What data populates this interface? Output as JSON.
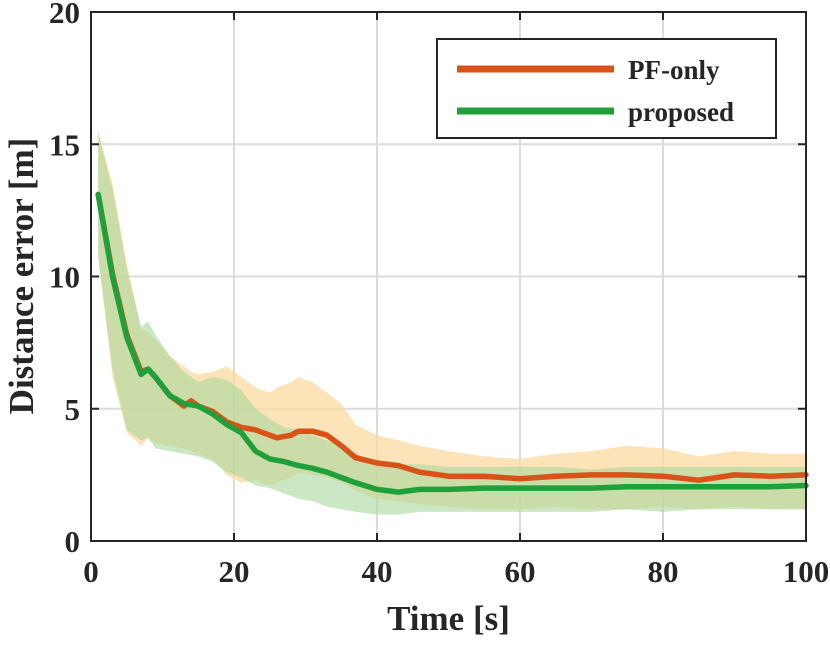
{
  "chart_data": {
    "type": "line",
    "title": "",
    "xlabel": "Time [s]",
    "ylabel": "Distance error [m]",
    "xlim": [
      0,
      100
    ],
    "ylim": [
      0,
      20
    ],
    "xticks": [
      0,
      20,
      40,
      60,
      80,
      100
    ],
    "yticks": [
      0,
      5,
      10,
      15,
      20
    ],
    "xtick_labels": [
      "0",
      "20",
      "40",
      "60",
      "80",
      "100"
    ],
    "ytick_labels": [
      "0",
      "5",
      "10",
      "15",
      "20"
    ],
    "grid": true,
    "legend_position": "top-right",
    "series": [
      {
        "name": "PF-only",
        "color": "#d95319",
        "band_color": "#fcd9a0",
        "x": [
          1,
          3,
          5,
          7,
          8,
          9,
          11,
          13,
          14,
          15,
          17,
          19,
          21,
          23,
          25,
          26,
          28,
          29,
          31,
          33,
          35,
          37,
          40,
          43,
          46,
          50,
          55,
          60,
          65,
          70,
          75,
          80,
          85,
          90,
          95,
          100
        ],
        "values": [
          13.1,
          10.1,
          7.8,
          6.4,
          6.5,
          6.2,
          5.5,
          5.1,
          5.3,
          5.1,
          4.9,
          4.5,
          4.3,
          4.2,
          4.0,
          3.9,
          4.0,
          4.15,
          4.15,
          4.0,
          3.6,
          3.15,
          2.95,
          2.85,
          2.6,
          2.45,
          2.45,
          2.35,
          2.45,
          2.5,
          2.5,
          2.45,
          2.3,
          2.5,
          2.45,
          2.5
        ],
        "upper": [
          15.5,
          13.5,
          10.5,
          8.0,
          7.9,
          7.6,
          7.0,
          6.6,
          6.4,
          6.3,
          6.4,
          6.6,
          6.2,
          5.8,
          5.6,
          5.8,
          6.0,
          6.2,
          6.0,
          5.6,
          5.2,
          4.4,
          4.0,
          3.8,
          3.6,
          3.4,
          3.2,
          3.1,
          3.3,
          3.4,
          3.6,
          3.5,
          3.2,
          3.4,
          3.3,
          3.3
        ],
        "lower": [
          10.8,
          6.2,
          4.1,
          3.6,
          3.9,
          3.7,
          3.6,
          3.5,
          3.4,
          3.3,
          3.1,
          2.5,
          2.2,
          2.3,
          2.1,
          2.2,
          2.4,
          2.6,
          2.5,
          2.4,
          2.2,
          1.9,
          1.6,
          1.5,
          1.4,
          1.3,
          1.2,
          1.2,
          1.3,
          1.2,
          1.2,
          1.3,
          1.2,
          1.3,
          1.2,
          1.2
        ]
      },
      {
        "name": "proposed",
        "color": "#1fa03a",
        "band_color": "#a8d79b",
        "x": [
          1,
          3,
          5,
          7,
          8,
          9,
          11,
          13,
          15,
          17,
          19,
          21,
          23,
          25,
          27,
          29,
          31,
          33,
          35,
          37,
          40,
          43,
          46,
          50,
          55,
          60,
          65,
          70,
          75,
          80,
          85,
          90,
          95,
          100
        ],
        "values": [
          13.1,
          10.0,
          7.7,
          6.3,
          6.5,
          6.2,
          5.5,
          5.2,
          5.1,
          4.8,
          4.4,
          4.1,
          3.4,
          3.1,
          3.0,
          2.85,
          2.75,
          2.6,
          2.4,
          2.2,
          1.95,
          1.85,
          1.95,
          1.95,
          2.0,
          2.0,
          2.0,
          2.0,
          2.05,
          2.05,
          2.05,
          2.05,
          2.05,
          2.1
        ],
        "upper": [
          15.4,
          13.3,
          10.3,
          8.1,
          8.3,
          7.8,
          7.0,
          6.4,
          6.0,
          6.2,
          6.1,
          5.7,
          5.0,
          4.6,
          4.3,
          4.2,
          4.0,
          3.8,
          3.6,
          3.3,
          3.0,
          2.9,
          2.9,
          2.8,
          2.8,
          2.8,
          2.8,
          2.7,
          2.8,
          2.8,
          2.8,
          2.8,
          2.8,
          2.8
        ],
        "lower": [
          10.7,
          6.5,
          4.2,
          3.8,
          3.9,
          3.5,
          3.4,
          3.3,
          3.2,
          3.0,
          2.6,
          2.4,
          2.1,
          2.0,
          1.8,
          1.6,
          1.5,
          1.3,
          1.2,
          1.1,
          1.0,
          1.0,
          1.1,
          1.1,
          1.1,
          1.1,
          1.1,
          1.1,
          1.2,
          1.1,
          1.2,
          1.2,
          1.2,
          1.2
        ]
      }
    ]
  }
}
